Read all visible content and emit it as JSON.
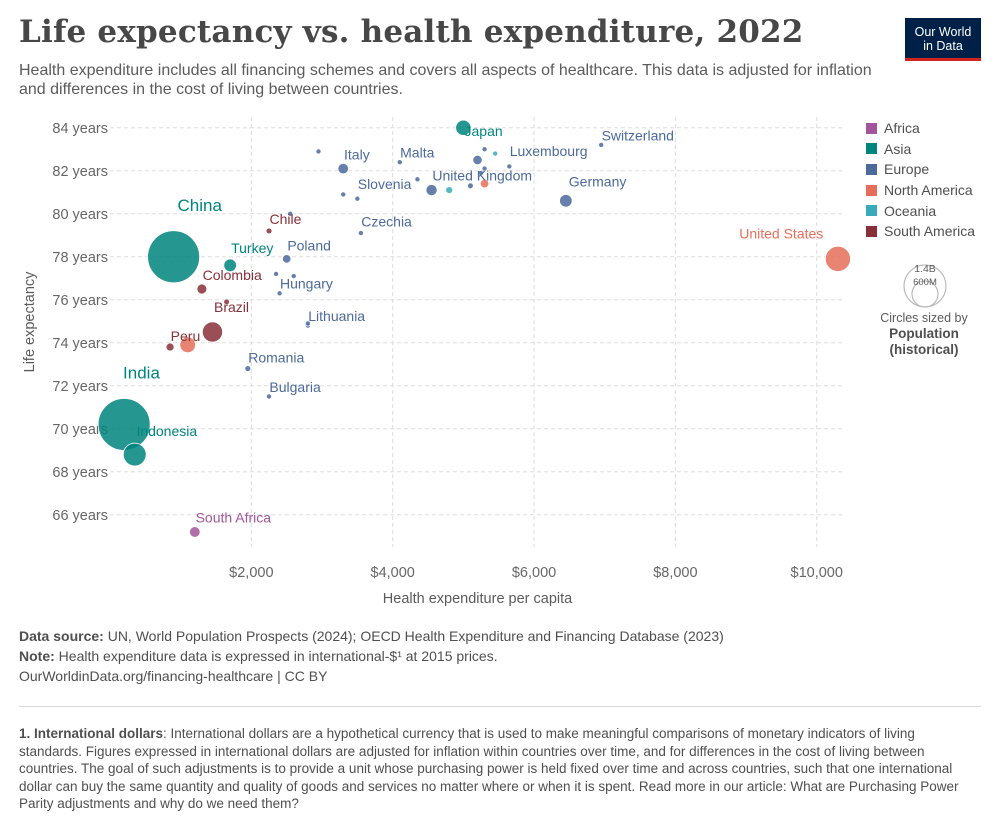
{
  "header": {
    "title": "Life expectancy vs. health expenditure, 2022",
    "subtitle": "Health expenditure includes all financing schemes and covers all aspects of healthcare. This data is adjusted for inflation and differences in the cost of living between countries.",
    "logo_line1": "Our World",
    "logo_line2": "in Data"
  },
  "colors": {
    "Africa": "#a2559c",
    "Asia": "#00847e",
    "Europe": "#4c6a9c",
    "North America": "#e56e5a",
    "Oceania": "#38aaba",
    "South America": "#883039"
  },
  "legend": {
    "regions": [
      "Africa",
      "Asia",
      "Europe",
      "North America",
      "Oceania",
      "South America"
    ],
    "size_large": "1.4B",
    "size_small": "600M",
    "size_note": "Circles sized by",
    "size_note_bold1": "Population",
    "size_note_bold2": "(historical)"
  },
  "chart_data": {
    "type": "scatter",
    "title": "Life expectancy vs. health expenditure, 2022",
    "xlabel": "Health expenditure per capita",
    "ylabel": "Life expectancy",
    "xlim": [
      0,
      10400
    ],
    "ylim": [
      64.5,
      84.5
    ],
    "x_ticks": [
      2000,
      4000,
      6000,
      8000,
      10000
    ],
    "x_tick_labels": [
      "$2,000",
      "$4,000",
      "$6,000",
      "$8,000",
      "$10,000"
    ],
    "y_ticks": [
      66,
      68,
      70,
      72,
      74,
      76,
      78,
      80,
      82,
      84
    ],
    "y_tick_labels": [
      "66 years",
      "68 years",
      "70 years",
      "72 years",
      "74 years",
      "76 years",
      "78 years",
      "80 years",
      "82 years",
      "84 years"
    ],
    "grid": true,
    "points": [
      {
        "label": "China",
        "x": 900,
        "y": 78.0,
        "pop": 1420,
        "region": "Asia"
      },
      {
        "label": "India",
        "x": 200,
        "y": 70.2,
        "pop": 1420,
        "region": "Asia"
      },
      {
        "label": "Indonesia",
        "x": 350,
        "y": 68.8,
        "pop": 275,
        "region": "Asia"
      },
      {
        "label": "Japan",
        "x": 5000,
        "y": 84.0,
        "pop": 124,
        "region": "Asia"
      },
      {
        "label": "Turkey",
        "x": 1700,
        "y": 77.6,
        "pop": 85,
        "region": "Asia"
      },
      {
        "label": "United States",
        "x": 10300,
        "y": 77.9,
        "pop": 335,
        "region": "North America"
      },
      {
        "label": "Brazil",
        "x": 1450,
        "y": 74.5,
        "pop": 216,
        "region": "South America"
      },
      {
        "label": "Colombia",
        "x": 1300,
        "y": 76.5,
        "pop": 52,
        "region": "South America"
      },
      {
        "label": "Chile",
        "x": 2250,
        "y": 79.2,
        "pop": 19,
        "region": "South America"
      },
      {
        "label": "Peru",
        "x": 850,
        "y": 73.8,
        "pop": 34,
        "region": "South America"
      },
      {
        "label": "South Africa",
        "x": 1200,
        "y": 65.2,
        "pop": 60,
        "region": "Africa"
      },
      {
        "label": "Switzerland",
        "x": 6950,
        "y": 83.2,
        "pop": 9,
        "region": "Europe"
      },
      {
        "label": "Luxembourg",
        "x": 5650,
        "y": 82.2,
        "pop": 0.6,
        "region": "Europe"
      },
      {
        "label": "Germany",
        "x": 6450,
        "y": 80.6,
        "pop": 84,
        "region": "Europe"
      },
      {
        "label": "United Kingdom",
        "x": 4550,
        "y": 81.1,
        "pop": 67,
        "region": "Europe"
      },
      {
        "label": "Italy",
        "x": 3300,
        "y": 82.1,
        "pop": 59,
        "region": "Europe"
      },
      {
        "label": "Malta",
        "x": 4100,
        "y": 82.4,
        "pop": 0.5,
        "region": "Europe"
      },
      {
        "label": "Slovenia",
        "x": 3500,
        "y": 80.7,
        "pop": 2,
        "region": "Europe"
      },
      {
        "label": "Czechia",
        "x": 3550,
        "y": 79.1,
        "pop": 10,
        "region": "Europe"
      },
      {
        "label": "Poland",
        "x": 2500,
        "y": 77.9,
        "pop": 38,
        "region": "Europe"
      },
      {
        "label": "Hungary",
        "x": 2400,
        "y": 76.3,
        "pop": 10,
        "region": "Europe"
      },
      {
        "label": "Lithuania",
        "x": 2800,
        "y": 74.8,
        "pop": 3,
        "region": "Europe"
      },
      {
        "label": "Romania",
        "x": 1950,
        "y": 72.8,
        "pop": 19,
        "region": "Europe"
      },
      {
        "label": "Bulgaria",
        "x": 2250,
        "y": 71.5,
        "pop": 7,
        "region": "Europe"
      },
      {
        "label": "",
        "x": 5200,
        "y": 82.5,
        "pop": 47,
        "region": "Europe"
      },
      {
        "label": "",
        "x": 5300,
        "y": 83.0,
        "pop": 4,
        "region": "Europe"
      },
      {
        "label": "",
        "x": 5300,
        "y": 82.1,
        "pop": 10,
        "region": "Europe"
      },
      {
        "label": "",
        "x": 5250,
        "y": 81.9,
        "pop": 6,
        "region": "Europe"
      },
      {
        "label": "",
        "x": 5450,
        "y": 82.8,
        "pop": 5,
        "region": "Oceania"
      },
      {
        "label": "",
        "x": 5300,
        "y": 81.4,
        "pop": 39,
        "region": "North America"
      },
      {
        "label": "",
        "x": 4350,
        "y": 81.6,
        "pop": 11,
        "region": "Europe"
      },
      {
        "label": "",
        "x": 4800,
        "y": 81.1,
        "pop": 26,
        "region": "Oceania"
      },
      {
        "label": "",
        "x": 5100,
        "y": 81.3,
        "pop": 18,
        "region": "Europe"
      },
      {
        "label": "",
        "x": 2950,
        "y": 82.9,
        "pop": 5,
        "region": "Europe"
      },
      {
        "label": "",
        "x": 3300,
        "y": 80.9,
        "pop": 10,
        "region": "Europe"
      },
      {
        "label": "",
        "x": 2550,
        "y": 80.0,
        "pop": 1.3,
        "region": "Europe"
      },
      {
        "label": "",
        "x": 2350,
        "y": 77.2,
        "pop": 5,
        "region": "Europe"
      },
      {
        "label": "",
        "x": 2600,
        "y": 77.1,
        "pop": 4,
        "region": "Europe"
      },
      {
        "label": "",
        "x": 2800,
        "y": 74.9,
        "pop": 2,
        "region": "Europe"
      },
      {
        "label": "",
        "x": 1650,
        "y": 75.9,
        "pop": 18,
        "region": "South America"
      },
      {
        "label": "",
        "x": 1100,
        "y": 73.9,
        "pop": 130,
        "region": "North America"
      }
    ]
  },
  "footer": {
    "source_label": "Data source:",
    "source_text": "UN, World Population Prospects (2024); OECD Health Expenditure and Financing Database (2023)",
    "note_label": "Note:",
    "note_text": "Health expenditure data is expressed in international-$¹ at 2015 prices.",
    "link": "OurWorldinData.org/financing-healthcare | CC BY"
  },
  "footnote": {
    "title": "1. International dollars",
    "text": ": International dollars are a hypothetical currency that is used to make meaningful comparisons of monetary indicators of living standards. Figures expressed in international dollars are adjusted for inflation within countries over time, and for differences in the cost of living between countries. The goal of such adjustments is to provide a unit whose purchasing power is held fixed over time and across countries, such that one international dollar can buy the same quantity and quality of goods and services no matter where or when it is spent. Read more in our article: What are Purchasing Power Parity adjustments and why do we need them?"
  }
}
